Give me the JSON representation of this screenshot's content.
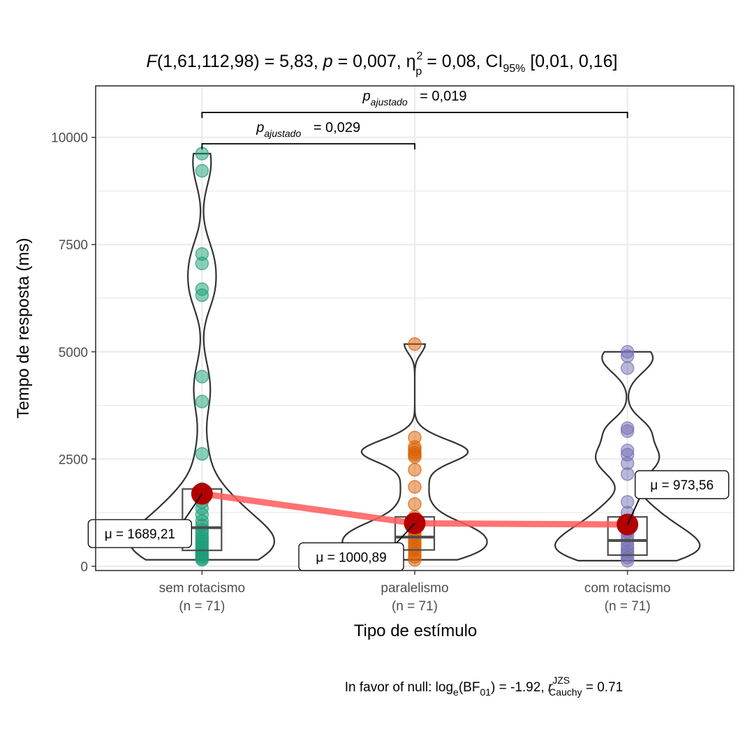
{
  "chart_data": {
    "type": "violin",
    "title": {
      "F": "F",
      "args": "(1,61,112,98) = 5,83, ",
      "p": "p",
      "pval": " = 0,007, ",
      "eta": "η",
      "eta_sup": "2",
      "eta_sub": "p",
      "eta_val": " = 0,08, CI",
      "ci_sub": "95%",
      "ci_val": " [0,01, 0,16]"
    },
    "xlabel": "Tipo de estímulo",
    "ylabel": "Tempo de resposta (ms)",
    "ylim": [
      -100,
      11200
    ],
    "y_ticks": [
      0,
      2500,
      5000,
      7500,
      10000
    ],
    "y_tick_labels": [
      "0",
      "2500",
      "5000",
      "7500",
      "10000"
    ],
    "grid": true,
    "categories": [
      "sem rotacismo",
      "paralelismo",
      "com rotacismo"
    ],
    "n_labels": [
      "(n = 71)",
      "(n = 71)",
      "(n = 71)"
    ],
    "groups": [
      {
        "name": "sem rotacismo",
        "color": "#1b9e77",
        "mean": 1689.21,
        "mean_label": "μ = 1689,21",
        "box": {
          "q1": 370,
          "median": 900,
          "q3": 1800
        },
        "points": [
          9620,
          9220,
          7280,
          7060,
          6460,
          6320,
          4420,
          3840,
          2620,
          1800,
          1650,
          1500,
          1350,
          1200,
          1050,
          950,
          850,
          780,
          700,
          640,
          580,
          520,
          460,
          400,
          350,
          300,
          260,
          220,
          180,
          150
        ]
      },
      {
        "name": "paralelismo",
        "color": "#d95f02",
        "mean": 1000.89,
        "mean_label": "μ = 1000,89",
        "box": {
          "q1": 380,
          "median": 680,
          "q3": 1150
        },
        "points": [
          5180,
          3000,
          2780,
          2720,
          2650,
          2600,
          2550,
          2250,
          1850,
          1450,
          1150,
          1000,
          900,
          820,
          750,
          680,
          600,
          520,
          450,
          380,
          300,
          220,
          150
        ]
      },
      {
        "name": "com rotacismo",
        "color": "#7570b3",
        "mean": 973.56,
        "mean_label": "μ = 973,56",
        "box": {
          "q1": 260,
          "median": 600,
          "q3": 1150
        },
        "points": [
          5000,
          4900,
          4620,
          3220,
          3150,
          2700,
          2600,
          2400,
          2150,
          1500,
          1250,
          1050,
          900,
          800,
          700,
          600,
          500,
          420,
          350,
          280,
          200,
          130
        ]
      }
    ],
    "comparisons": [
      {
        "from": "sem rotacismo",
        "to": "paralelismo",
        "y": 9850,
        "label_p": "p",
        "label_sub": "ajustado",
        "label_val": " = 0,029"
      },
      {
        "from": "sem rotacismo",
        "to": "com rotacismo",
        "y": 10580,
        "label_p": "p",
        "label_sub": "ajustado",
        "label_val": " = 0,019"
      }
    ],
    "footer": {
      "prefix": "In favor of null: log",
      "log_sub": "e",
      "bf": "(BF",
      "bf_sub": "01",
      "bf_val": ") = -1.92, ",
      "r": "r",
      "r_sup": "JZS",
      "r_sub": "Cauchy",
      "r_val": " = 0.71"
    },
    "colors": {
      "mean_line": "#ff5a5a",
      "mean_point": "#b20000",
      "violin_stroke": "#333333",
      "grid": "#ebebeb",
      "panel_border": "#333333"
    }
  }
}
